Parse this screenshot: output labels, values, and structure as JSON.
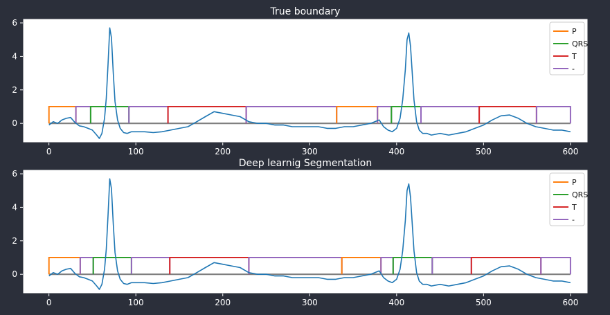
{
  "chart_data": [
    {
      "type": "line",
      "title": "True boundary",
      "xlim": [
        -30,
        620
      ],
      "ylim": [
        -1.15,
        6.25
      ],
      "xticks": [
        0,
        100,
        200,
        300,
        400,
        500,
        600
      ],
      "yticks": [
        0,
        2,
        4,
        6
      ],
      "grid": false,
      "legend_position": "top-right",
      "legend": [
        "P",
        "QRS",
        "T",
        "-"
      ],
      "colors": {
        "ecg": "#1f77b4",
        "P": "#ff7f0e",
        "QRS": "#2ca02c",
        "T": "#d62728",
        "-": "#9467bd",
        "zero": "#7f7f7f"
      },
      "segments": [
        {
          "label": "P",
          "start": 0,
          "end": 31
        },
        {
          "label": "-",
          "start": 31,
          "end": 48
        },
        {
          "label": "QRS",
          "start": 48,
          "end": 92
        },
        {
          "label": "-",
          "start": 92,
          "end": 137
        },
        {
          "label": "T",
          "start": 137,
          "end": 227
        },
        {
          "label": "-",
          "start": 227,
          "end": 331
        },
        {
          "label": "P",
          "start": 331,
          "end": 378
        },
        {
          "label": "-",
          "start": 378,
          "end": 394
        },
        {
          "label": "QRS",
          "start": 394,
          "end": 428
        },
        {
          "label": "-",
          "start": 428,
          "end": 495
        },
        {
          "label": "T",
          "start": 495,
          "end": 561
        },
        {
          "label": "-",
          "start": 561,
          "end": 600
        }
      ]
    },
    {
      "type": "line",
      "title": "Deep learnig Segmentation",
      "xlim": [
        -30,
        620
      ],
      "ylim": [
        -1.15,
        6.25
      ],
      "xticks": [
        0,
        100,
        200,
        300,
        400,
        500,
        600
      ],
      "yticks": [
        0,
        2,
        4,
        6
      ],
      "grid": false,
      "legend_position": "top-right",
      "legend": [
        "P",
        "QRS",
        "T",
        "-"
      ],
      "colors": {
        "ecg": "#1f77b4",
        "P": "#ff7f0e",
        "QRS": "#2ca02c",
        "T": "#d62728",
        "-": "#9467bd",
        "zero": "#7f7f7f"
      },
      "segments": [
        {
          "label": "P",
          "start": 0,
          "end": 36
        },
        {
          "label": "-",
          "start": 36,
          "end": 51
        },
        {
          "label": "QRS",
          "start": 51,
          "end": 95
        },
        {
          "label": "-",
          "start": 95,
          "end": 139
        },
        {
          "label": "T",
          "start": 139,
          "end": 230
        },
        {
          "label": "-",
          "start": 230,
          "end": 337
        },
        {
          "label": "P",
          "start": 337,
          "end": 382
        },
        {
          "label": "-",
          "start": 382,
          "end": 396
        },
        {
          "label": "QRS",
          "start": 396,
          "end": 441
        },
        {
          "label": "-",
          "start": 441,
          "end": 486
        },
        {
          "label": "T",
          "start": 486,
          "end": 566
        },
        {
          "label": "-",
          "start": 566,
          "end": 600
        }
      ]
    }
  ],
  "ecg_signal": {
    "x": [
      0,
      5,
      10,
      15,
      20,
      25,
      30,
      35,
      40,
      45,
      50,
      55,
      58,
      61,
      64,
      66,
      68,
      70,
      72,
      74,
      76,
      79,
      82,
      86,
      90,
      95,
      100,
      110,
      120,
      130,
      140,
      150,
      160,
      170,
      180,
      190,
      200,
      210,
      220,
      230,
      240,
      250,
      260,
      270,
      280,
      290,
      300,
      310,
      320,
      330,
      340,
      350,
      360,
      370,
      380,
      385,
      390,
      395,
      400,
      404,
      407,
      410,
      412,
      414,
      416,
      418,
      420,
      423,
      426,
      430,
      435,
      440,
      450,
      460,
      470,
      480,
      490,
      500,
      510,
      520,
      530,
      540,
      550,
      560,
      570,
      580,
      590,
      600
    ],
    "y": [
      -0.1,
      0.1,
      0.0,
      0.2,
      0.3,
      0.35,
      0.05,
      -0.15,
      -0.2,
      -0.3,
      -0.4,
      -0.7,
      -0.9,
      -0.6,
      0.3,
      1.5,
      3.5,
      5.7,
      5.1,
      3.0,
      1.3,
      0.2,
      -0.3,
      -0.55,
      -0.6,
      -0.5,
      -0.5,
      -0.5,
      -0.55,
      -0.5,
      -0.4,
      -0.3,
      -0.2,
      0.1,
      0.4,
      0.7,
      0.6,
      0.5,
      0.4,
      0.1,
      0.0,
      0.0,
      -0.1,
      -0.1,
      -0.2,
      -0.2,
      -0.2,
      -0.2,
      -0.3,
      -0.3,
      -0.2,
      -0.2,
      -0.1,
      0.0,
      0.2,
      -0.2,
      -0.4,
      -0.5,
      -0.3,
      0.3,
      1.4,
      3.2,
      5.0,
      5.4,
      4.6,
      3.0,
      1.4,
      0.1,
      -0.4,
      -0.6,
      -0.6,
      -0.7,
      -0.6,
      -0.7,
      -0.6,
      -0.5,
      -0.3,
      -0.1,
      0.2,
      0.45,
      0.5,
      0.3,
      0.0,
      -0.2,
      -0.3,
      -0.4,
      -0.4,
      -0.5
    ]
  }
}
